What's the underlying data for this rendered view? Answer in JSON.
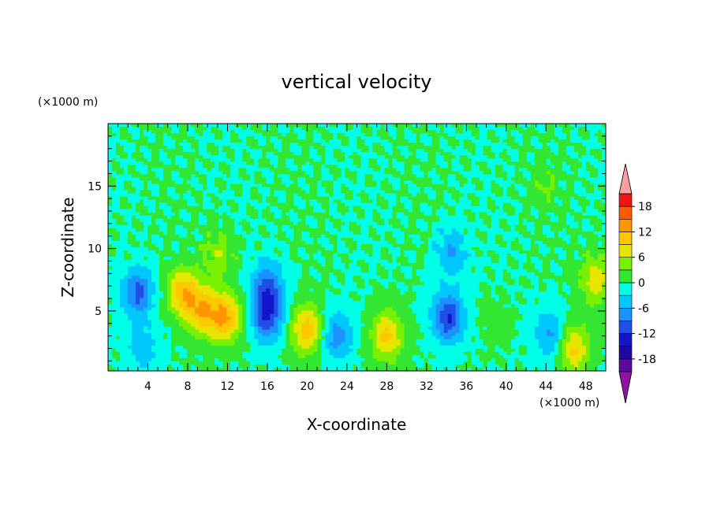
{
  "chart_data": {
    "type": "heatmap",
    "subtype": "filled-contour",
    "title": "vertical velocity",
    "xlabel": "X-coordinate",
    "ylabel": "Z-coordinate",
    "x_unit": "(×1000 m)",
    "y_unit": "(×1000 m)",
    "xlim": [
      0,
      50
    ],
    "ylim": [
      0.2,
      20
    ],
    "x_ticks": [
      4,
      8,
      12,
      16,
      20,
      24,
      28,
      32,
      36,
      40,
      44,
      48
    ],
    "y_ticks": [
      5,
      10,
      15
    ],
    "colorbar": {
      "levels": [
        -21,
        -18,
        -15,
        -12,
        -9,
        -6,
        -3,
        0,
        3,
        6,
        9,
        12,
        15,
        18,
        21
      ],
      "tick_labels": [
        "18",
        "12",
        "6",
        "0",
        "-6",
        "-12",
        "-18"
      ],
      "tick_values": [
        18,
        12,
        6,
        0,
        -6,
        -12,
        -18
      ],
      "colors": [
        "#5a0a9e",
        "#1c0aa0",
        "#1414c8",
        "#1e50e6",
        "#1e90ff",
        "#00c8ff",
        "#00ffe6",
        "#32e632",
        "#78f000",
        "#e6e600",
        "#ffc800",
        "#ff9600",
        "#ff5a00",
        "#f01414"
      ],
      "under_color": "#8c14a0",
      "over_color": "#f5a0a0"
    },
    "features": [
      {
        "x": 3.0,
        "z": 6.5,
        "value": -10
      },
      {
        "x": 3.5,
        "z": 2.0,
        "value": -5
      },
      {
        "x": 7.5,
        "z": 6.5,
        "value": 11
      },
      {
        "x": 9.5,
        "z": 5.0,
        "value": 10
      },
      {
        "x": 11.8,
        "z": 4.5,
        "value": 12
      },
      {
        "x": 11.0,
        "z": 9.5,
        "value": 5
      },
      {
        "x": 16.0,
        "z": 4.5,
        "value": -11
      },
      {
        "x": 16.0,
        "z": 7.0,
        "value": -9
      },
      {
        "x": 20.0,
        "z": 3.5,
        "value": 11
      },
      {
        "x": 23.0,
        "z": 3.0,
        "value": -8
      },
      {
        "x": 28.0,
        "z": 3.0,
        "value": 10
      },
      {
        "x": 34.2,
        "z": 4.5,
        "value": -12
      },
      {
        "x": 34.5,
        "z": 9.7,
        "value": -6
      },
      {
        "x": 39.0,
        "z": 4.0,
        "value": 1
      },
      {
        "x": 44.5,
        "z": 3.0,
        "value": -7
      },
      {
        "x": 46.7,
        "z": 2.0,
        "value": 10
      },
      {
        "x": 49.0,
        "z": 7.5,
        "value": 8
      },
      {
        "x": 44.0,
        "z": 15.0,
        "value": 3
      }
    ]
  }
}
